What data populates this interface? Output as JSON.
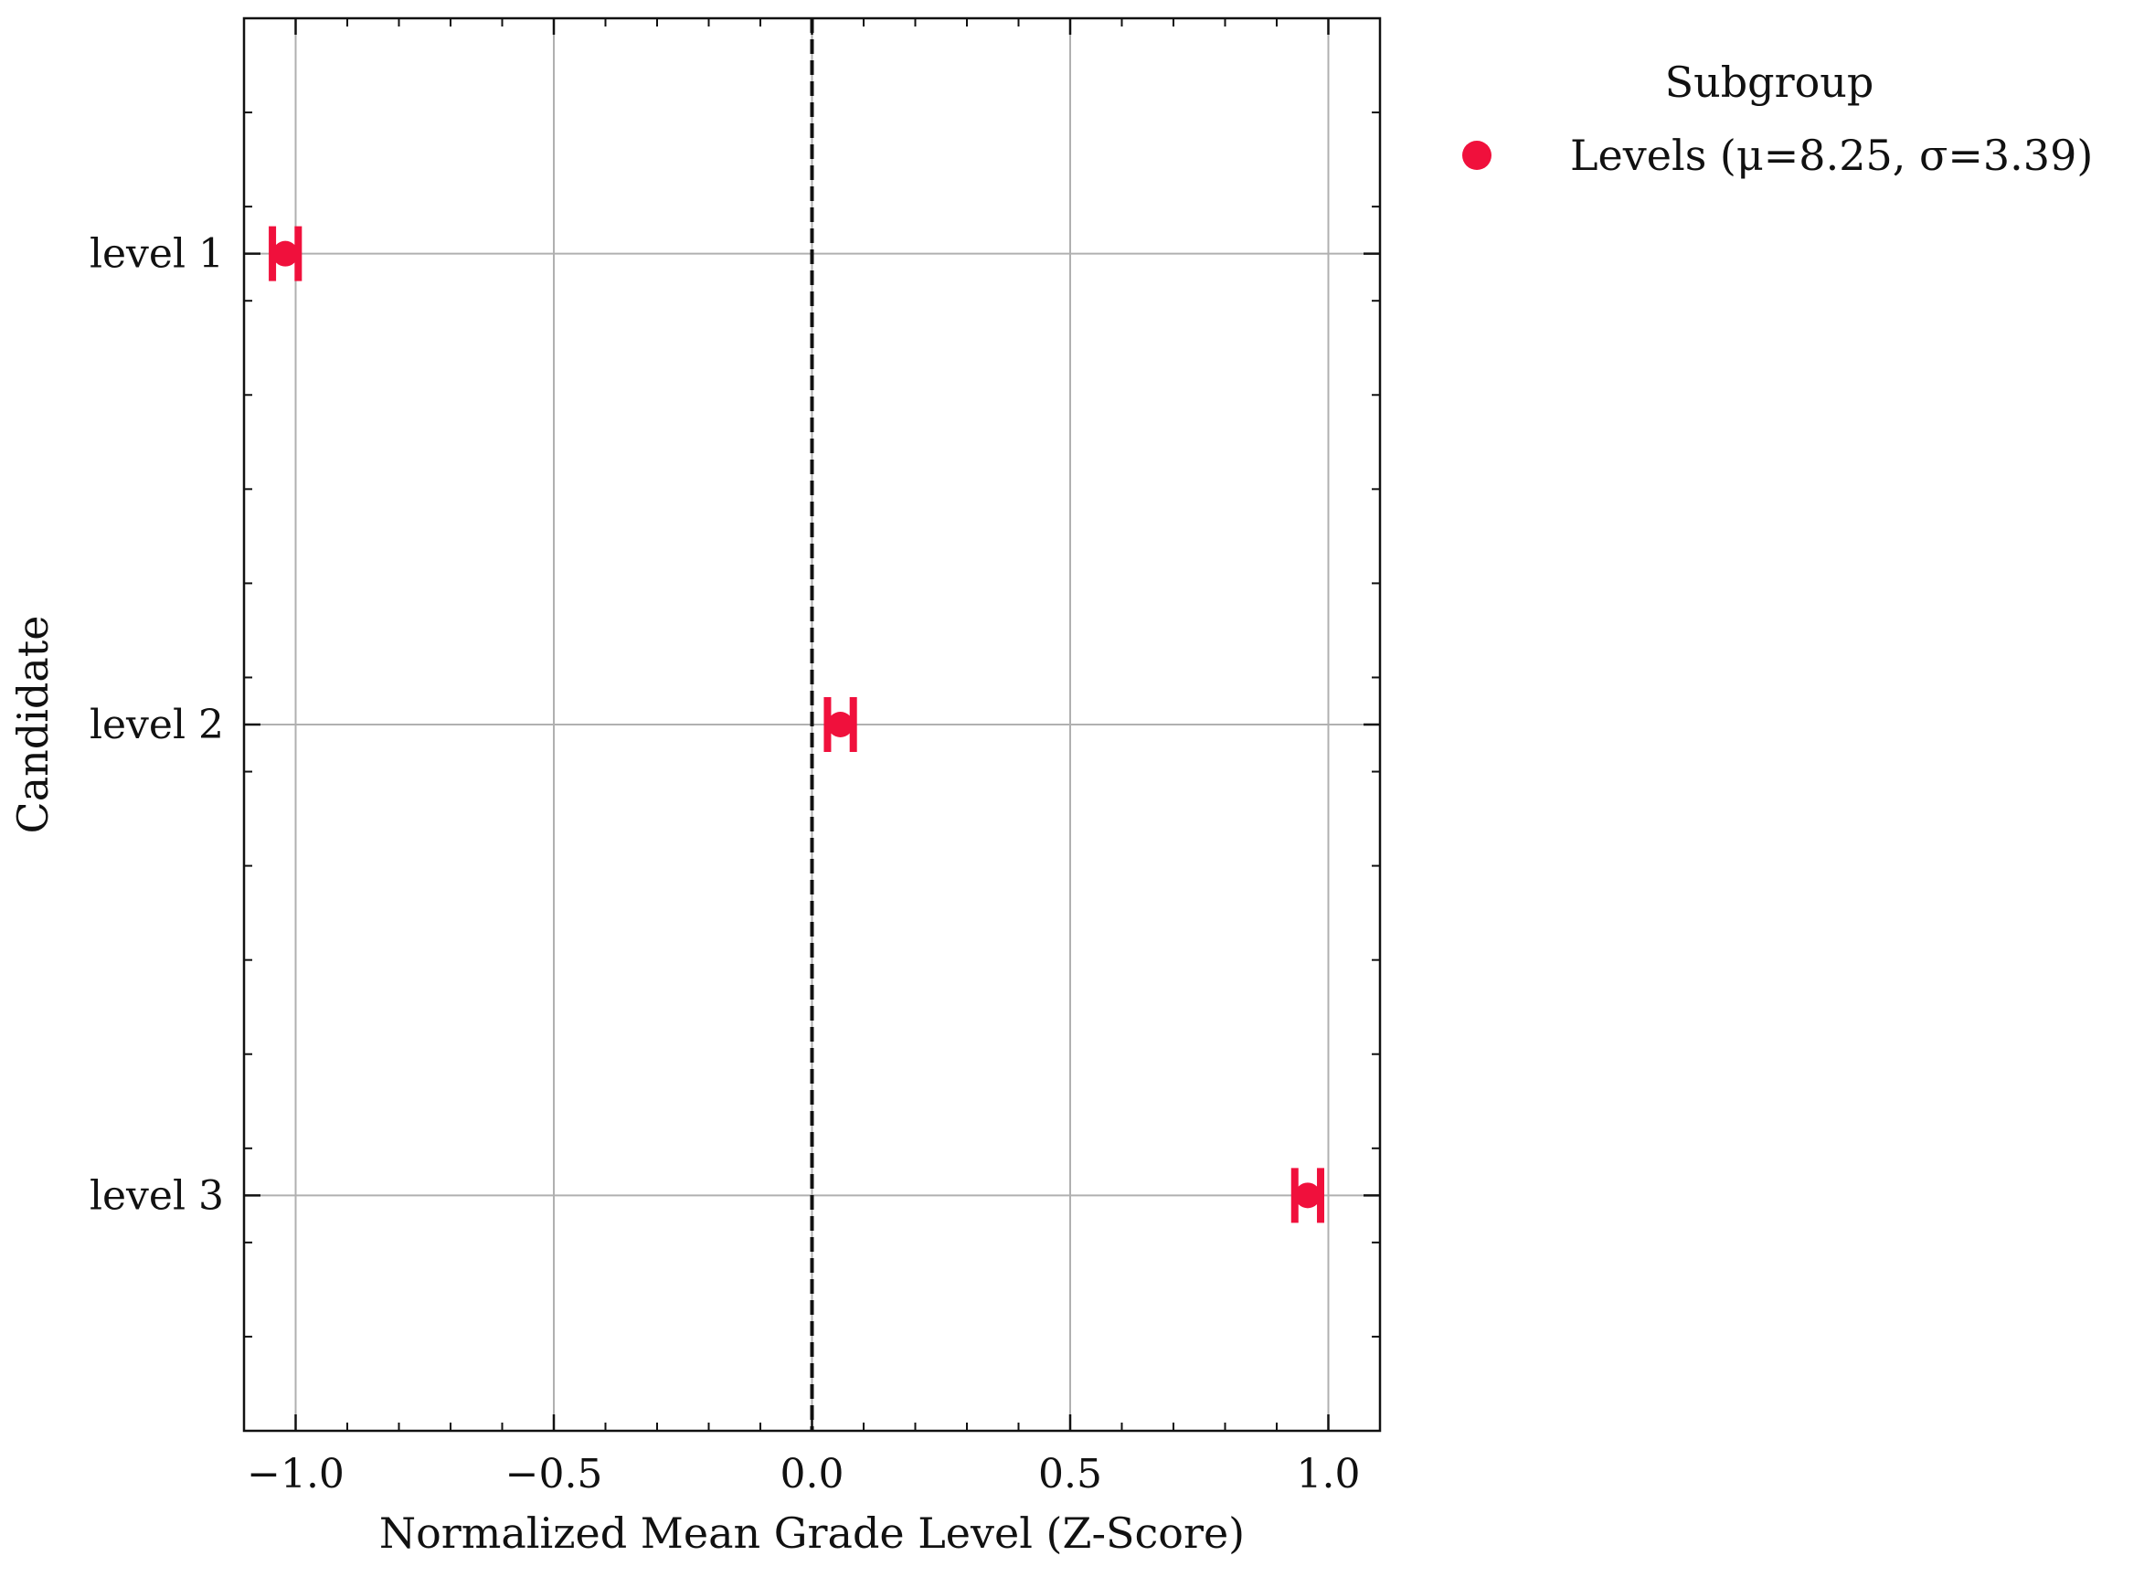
{
  "chart_data": {
    "type": "scatter",
    "xlabel": "Normalized Mean Grade Level (Z-Score)",
    "ylabel": "Candidate",
    "categories": [
      "level 1",
      "level 2",
      "level 3"
    ],
    "xlim": [
      -1.1,
      1.1
    ],
    "x_ticks": [
      -1.0,
      -0.5,
      0.0,
      0.5,
      1.0
    ],
    "x_tick_labels": [
      "−1.0",
      "−0.5",
      "0.0",
      "0.5",
      "1.0"
    ],
    "reference_line_x": 0.0,
    "grid": true,
    "legend": {
      "title": "Subgroup",
      "placement": "outside-top-right",
      "entries": [
        "Levels (μ=8.25, σ=3.39)"
      ]
    },
    "series": [
      {
        "name": "Levels (μ=8.25, σ=3.39)",
        "color": "#f0103c",
        "points": [
          {
            "category": "level 1",
            "x": -1.02,
            "err": 0.025
          },
          {
            "category": "level 2",
            "x": 0.055,
            "err": 0.025
          },
          {
            "category": "level 3",
            "x": 0.96,
            "err": 0.025
          }
        ]
      }
    ]
  }
}
